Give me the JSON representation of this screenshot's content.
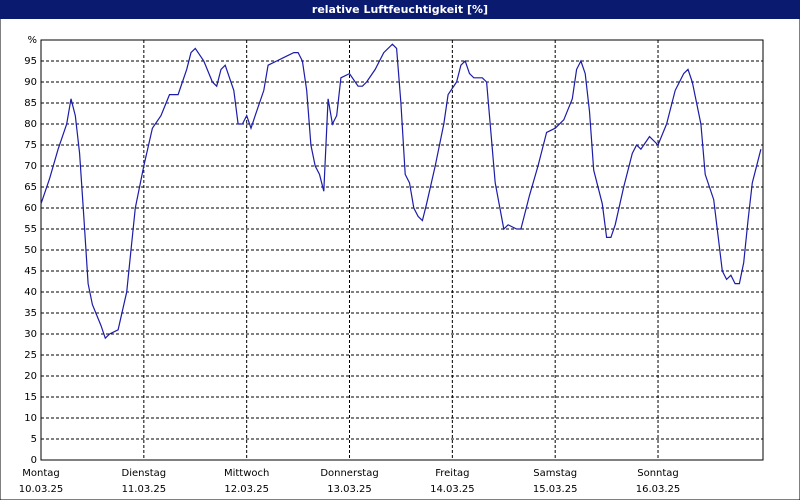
{
  "chart_data": {
    "type": "line",
    "title": "relative Luftfeuchtigkeit [%]",
    "x": [
      0,
      2,
      4,
      6,
      7,
      8,
      9,
      10,
      11,
      12,
      14,
      15,
      16,
      18,
      20,
      22,
      24,
      26,
      28,
      30,
      32,
      34,
      35,
      36,
      38,
      40,
      41,
      42,
      43,
      45,
      46,
      47,
      48,
      49,
      50,
      52,
      53,
      55,
      57,
      59,
      60,
      61,
      62,
      63,
      64,
      65,
      66,
      67,
      68,
      69,
      70,
      72,
      74,
      75,
      76,
      78,
      80,
      82,
      83,
      84,
      85,
      86,
      87,
      88,
      89,
      90,
      92,
      94,
      95,
      97,
      98,
      99,
      100,
      101,
      103,
      104,
      106,
      108,
      109,
      111,
      112,
      114,
      116,
      118,
      120,
      122,
      124,
      125,
      126,
      127,
      128,
      129,
      131,
      132,
      133,
      134,
      136,
      138,
      139,
      140,
      142,
      144,
      146,
      148,
      150,
      151,
      152,
      154,
      155,
      157,
      159,
      160,
      161,
      162,
      163,
      164,
      165,
      166,
      168
    ],
    "series": [
      {
        "name": "relative Luftfeuchtigkeit",
        "color": "#1c1ca8",
        "values": [
          61,
          67,
          74,
          80,
          86,
          82,
          73,
          58,
          42,
          37,
          32,
          29,
          30,
          31,
          40,
          60,
          70,
          79,
          82,
          87,
          87,
          93,
          97,
          98,
          95,
          90,
          89,
          93,
          94,
          88,
          80,
          80,
          82,
          79,
          82,
          88,
          94,
          95,
          96,
          97,
          97,
          95,
          88,
          75,
          70,
          68,
          64,
          86,
          80,
          82,
          91,
          92,
          89,
          89,
          90,
          93,
          97,
          99,
          98,
          85,
          68,
          66,
          60,
          58,
          57,
          61,
          70,
          80,
          87,
          90,
          94,
          95,
          92,
          91,
          91,
          90,
          66,
          55,
          56,
          55,
          55,
          63,
          70,
          78,
          79,
          81,
          86,
          93,
          95,
          92,
          83,
          69,
          61,
          53,
          53,
          56,
          65,
          73,
          75,
          74,
          77,
          75,
          80,
          88,
          92,
          93,
          90,
          80,
          68,
          62,
          45,
          43,
          44,
          42,
          42,
          47,
          57,
          66,
          74
        ]
      }
    ],
    "xlim": [
      0,
      168.5
    ],
    "xticks": [
      {
        "value": 0,
        "label": "Montag"
      },
      {
        "value": 24,
        "label": "Dienstag"
      },
      {
        "value": 48,
        "label": "Mittwoch"
      },
      {
        "value": 72,
        "label": "Donnerstag"
      },
      {
        "value": 96,
        "label": "Freitag"
      },
      {
        "value": 120,
        "label": "Samstag"
      },
      {
        "value": 144,
        "label": "Sonntag"
      }
    ],
    "xtick_dates": [
      "10.03.25",
      "11.03.25",
      "12.03.25",
      "13.03.25",
      "14.03.25",
      "15.03.25",
      "16.03.25"
    ],
    "ylim": [
      0,
      100
    ],
    "yticks": [
      0,
      5,
      10,
      15,
      20,
      25,
      30,
      35,
      40,
      45,
      50,
      55,
      60,
      65,
      70,
      75,
      80,
      85,
      90,
      95,
      {
        "value": 100,
        "label": "%"
      }
    ],
    "grid": true
  }
}
